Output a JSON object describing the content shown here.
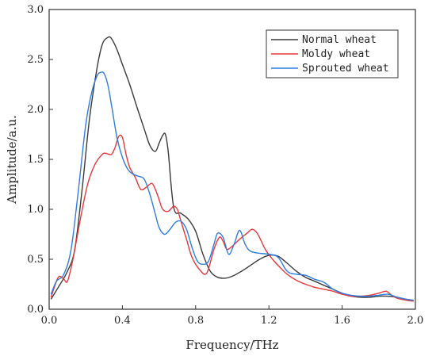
{
  "chart_data": {
    "type": "line",
    "xlabel": "Frequency/THz",
    "ylabel": "Amplitude/a.u.",
    "xlim": [
      0.0,
      2.0
    ],
    "ylim": [
      0.0,
      3.0
    ],
    "xticks": [
      "0.0",
      "0.4",
      "0.8",
      "1.2",
      "1.6",
      "2.0"
    ],
    "yticks": [
      "0.0",
      "0.5",
      "1.0",
      "1.5",
      "2.0",
      "2.5",
      "3.0"
    ],
    "grid": false,
    "legend_position": "top-right",
    "series": [
      {
        "name": "Normal wheat",
        "color": "#3a3a3a",
        "x": [
          0.01,
          0.05,
          0.1,
          0.14,
          0.18,
          0.22,
          0.26,
          0.29,
          0.32,
          0.34,
          0.37,
          0.4,
          0.44,
          0.48,
          0.52,
          0.55,
          0.58,
          0.6,
          0.62,
          0.635,
          0.65,
          0.68,
          0.72,
          0.76,
          0.8,
          0.84,
          0.88,
          0.92,
          0.96,
          1.0,
          1.05,
          1.1,
          1.15,
          1.2,
          1.25,
          1.3,
          1.35,
          1.4,
          1.45,
          1.5,
          1.55,
          1.6,
          1.65,
          1.7,
          1.75,
          1.8,
          1.85,
          1.9,
          1.95,
          1.99
        ],
        "y": [
          0.1,
          0.22,
          0.38,
          0.6,
          1.2,
          1.9,
          2.4,
          2.65,
          2.72,
          2.71,
          2.6,
          2.45,
          2.25,
          2.02,
          1.8,
          1.64,
          1.58,
          1.66,
          1.74,
          1.75,
          1.58,
          1.02,
          0.96,
          0.9,
          0.78,
          0.55,
          0.38,
          0.32,
          0.31,
          0.33,
          0.38,
          0.44,
          0.5,
          0.54,
          0.53,
          0.46,
          0.38,
          0.32,
          0.28,
          0.24,
          0.2,
          0.16,
          0.13,
          0.12,
          0.12,
          0.13,
          0.13,
          0.12,
          0.1,
          0.09
        ]
      },
      {
        "name": "Moldy wheat",
        "color": "#e8363b",
        "x": [
          0.01,
          0.05,
          0.08,
          0.1,
          0.13,
          0.17,
          0.21,
          0.25,
          0.29,
          0.31,
          0.34,
          0.36,
          0.38,
          0.4,
          0.42,
          0.44,
          0.47,
          0.5,
          0.53,
          0.56,
          0.58,
          0.6,
          0.62,
          0.65,
          0.68,
          0.7,
          0.72,
          0.75,
          0.78,
          0.82,
          0.86,
          0.9,
          0.93,
          0.95,
          0.97,
          1.0,
          1.04,
          1.08,
          1.11,
          1.14,
          1.18,
          1.22,
          1.26,
          1.3,
          1.35,
          1.4,
          1.45,
          1.5,
          1.55,
          1.6,
          1.65,
          1.7,
          1.75,
          1.8,
          1.84,
          1.87,
          1.9,
          1.95,
          1.99
        ],
        "y": [
          0.12,
          0.32,
          0.3,
          0.28,
          0.5,
          0.9,
          1.25,
          1.45,
          1.55,
          1.56,
          1.55,
          1.62,
          1.73,
          1.72,
          1.55,
          1.42,
          1.32,
          1.2,
          1.22,
          1.26,
          1.2,
          1.1,
          1.0,
          0.98,
          1.03,
          1.0,
          0.88,
          0.7,
          0.52,
          0.4,
          0.36,
          0.6,
          0.72,
          0.68,
          0.6,
          0.63,
          0.7,
          0.76,
          0.8,
          0.75,
          0.6,
          0.5,
          0.42,
          0.35,
          0.29,
          0.25,
          0.22,
          0.2,
          0.18,
          0.15,
          0.13,
          0.13,
          0.14,
          0.16,
          0.18,
          0.14,
          0.11,
          0.09,
          0.08
        ]
      },
      {
        "name": "Sprouted wheat",
        "color": "#2f7de1",
        "x": [
          0.01,
          0.04,
          0.08,
          0.12,
          0.16,
          0.2,
          0.23,
          0.26,
          0.28,
          0.3,
          0.32,
          0.34,
          0.37,
          0.4,
          0.43,
          0.46,
          0.49,
          0.52,
          0.55,
          0.58,
          0.6,
          0.63,
          0.66,
          0.69,
          0.72,
          0.75,
          0.78,
          0.81,
          0.84,
          0.87,
          0.9,
          0.92,
          0.95,
          0.98,
          1.01,
          1.04,
          1.07,
          1.1,
          1.15,
          1.2,
          1.25,
          1.3,
          1.35,
          1.4,
          1.45,
          1.5,
          1.55,
          1.6,
          1.65,
          1.7,
          1.75,
          1.8,
          1.85,
          1.9,
          1.95,
          1.99
        ],
        "y": [
          0.15,
          0.28,
          0.35,
          0.6,
          1.2,
          1.85,
          2.15,
          2.33,
          2.37,
          2.36,
          2.25,
          2.05,
          1.72,
          1.52,
          1.4,
          1.35,
          1.33,
          1.3,
          1.15,
          0.95,
          0.82,
          0.75,
          0.8,
          0.87,
          0.88,
          0.8,
          0.62,
          0.48,
          0.45,
          0.48,
          0.65,
          0.76,
          0.72,
          0.55,
          0.65,
          0.79,
          0.65,
          0.58,
          0.56,
          0.55,
          0.52,
          0.38,
          0.35,
          0.34,
          0.3,
          0.27,
          0.2,
          0.16,
          0.14,
          0.13,
          0.13,
          0.14,
          0.15,
          0.12,
          0.1,
          0.09
        ]
      }
    ]
  }
}
